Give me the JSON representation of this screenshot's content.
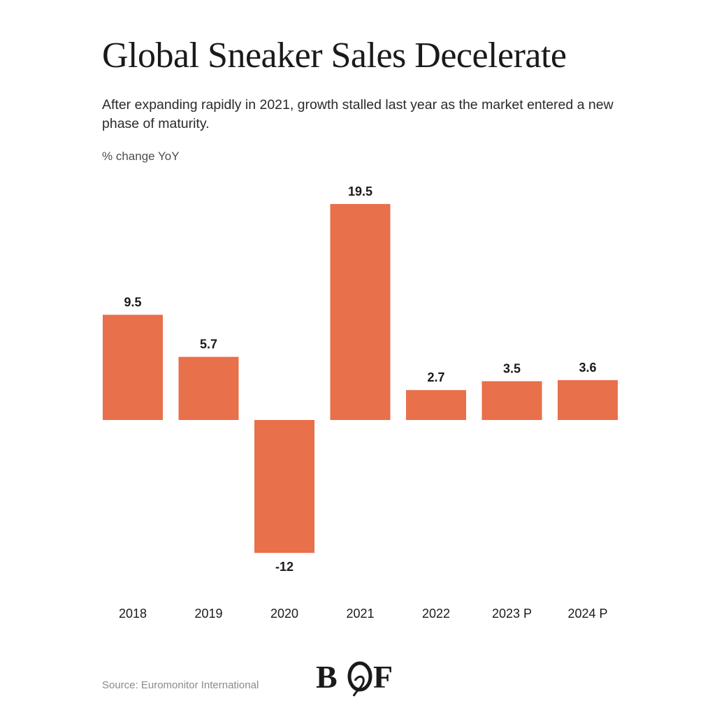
{
  "header": {
    "title": "Global Sneaker Sales Decelerate",
    "subtitle": "After expanding rapidly in 2021, growth stalled last year as the market entered a new phase of maturity.",
    "unit_label": "% change YoY"
  },
  "footer": {
    "source": "Source: Euromonitor International",
    "logo_text": "BOF"
  },
  "colors": {
    "bar": "#E8704A",
    "text": "#1a1a1a",
    "background": "#ffffff"
  },
  "chart_data": {
    "type": "bar",
    "title": "Global Sneaker Sales Decelerate",
    "ylabel": "% change YoY",
    "xlabel": "",
    "categories": [
      "2018",
      "2019",
      "2020",
      "2021",
      "2022",
      "2023 P",
      "2024 P"
    ],
    "values": [
      9.5,
      5.7,
      -12,
      19.5,
      2.7,
      3.5,
      3.6
    ],
    "value_labels": [
      "9.5",
      "5.7",
      "-12",
      "19.5",
      "2.7",
      "3.5",
      "3.6"
    ],
    "ylim": [
      -12,
      19.5
    ],
    "grid": false,
    "legend": "none"
  }
}
